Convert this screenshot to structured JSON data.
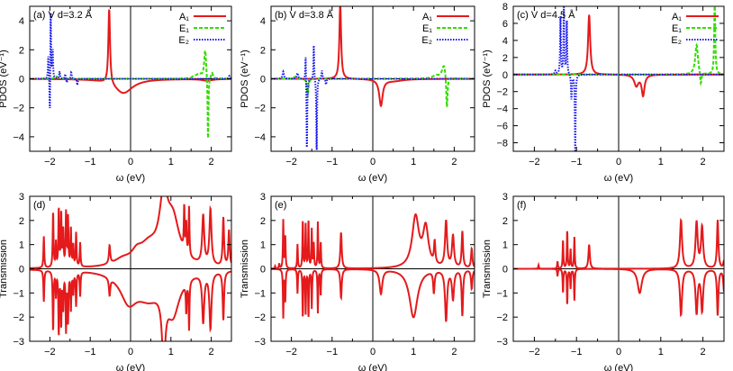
{
  "chart_data": [
    {
      "type": "line",
      "panel_label": "(a) V d=3.2 Å",
      "xlabel": "ω (eV)",
      "ylabel": "PDOS (eV⁻¹)",
      "xlim": [
        -2.5,
        2.5
      ],
      "ylim": [
        -5,
        5
      ],
      "xticks": [
        -2,
        -1,
        0,
        1,
        2
      ],
      "yticks": [
        -4,
        -2,
        0,
        2,
        4
      ],
      "legend": "top-right",
      "series": [
        {
          "name": "A₁",
          "color": "#e41a1c",
          "dash": "solid",
          "peaks": [
            [
              -0.53,
              5.2,
              0.025
            ],
            [
              -0.18,
              -1.0,
              0.28
            ],
            [
              1.9,
              -0.12,
              0.15
            ]
          ]
        },
        {
          "name": "E₁",
          "color": "#33dd00",
          "dash": "dashed",
          "peaks": [
            [
              1.58,
              0.15,
              0.06
            ],
            [
              1.7,
              0.3,
              0.07
            ],
            [
              1.85,
              2.0,
              0.03
            ],
            [
              1.92,
              -4.6,
              0.012
            ],
            [
              2.02,
              0.4,
              0.03
            ],
            [
              -1.85,
              0.18,
              0.04
            ]
          ]
        },
        {
          "name": "E₂",
          "color": "#1a1aee",
          "dash": "dotted",
          "peaks": [
            [
              -2.04,
              1.6,
              0.01
            ],
            [
              -2.0,
              -3.2,
              0.01
            ],
            [
              -1.98,
              5.2,
              0.01
            ],
            [
              -1.93,
              2.0,
              0.01
            ],
            [
              -1.76,
              0.5,
              0.012
            ],
            [
              -1.62,
              0.35,
              0.012
            ],
            [
              -1.58,
              -0.3,
              0.012
            ],
            [
              -1.47,
              0.45,
              0.012
            ],
            [
              -1.32,
              -0.45,
              0.012
            ],
            [
              2.45,
              0.2,
              0.02
            ]
          ]
        }
      ]
    },
    {
      "type": "line",
      "panel_label": "(b) V d=3.8 Å",
      "xlabel": "ω (eV)",
      "ylabel": "PDOS (eV⁻¹)",
      "xlim": [
        -2.5,
        2.5
      ],
      "ylim": [
        -5,
        5
      ],
      "xticks": [
        -2,
        -1,
        0,
        1,
        2
      ],
      "yticks": [
        -4,
        -2,
        0,
        2,
        4
      ],
      "legend": "top-right",
      "series": [
        {
          "name": "A₁",
          "color": "#e41a1c",
          "dash": "solid",
          "peaks": [
            [
              -0.8,
              5.2,
              0.025
            ],
            [
              0.2,
              -1.8,
              0.05
            ],
            [
              0.5,
              -0.15,
              0.3
            ]
          ]
        },
        {
          "name": "E₁",
          "color": "#33dd00",
          "dash": "dashed",
          "peaks": [
            [
              -1.6,
              -1.2,
              0.02
            ],
            [
              -1.9,
              0.15,
              0.05
            ],
            [
              1.55,
              0.2,
              0.1
            ],
            [
              1.75,
              1.0,
              0.06
            ],
            [
              1.82,
              -2.4,
              0.02
            ]
          ]
        },
        {
          "name": "E₂",
          "color": "#1a1aee",
          "dash": "dotted",
          "peaks": [
            [
              -2.2,
              0.5,
              0.02
            ],
            [
              -1.85,
              0.4,
              0.02
            ],
            [
              -1.65,
              2.0,
              0.01
            ],
            [
              -1.62,
              -5.2,
              0.01
            ],
            [
              -1.45,
              2.4,
              0.01
            ],
            [
              -1.38,
              -5.2,
              0.01
            ],
            [
              -1.25,
              0.6,
              0.015
            ],
            [
              -1.15,
              -0.4,
              0.015
            ]
          ]
        }
      ]
    },
    {
      "type": "line",
      "panel_label": "(c) V d=4.5 Å",
      "xlabel": "ω (eV)",
      "ylabel": "PDOS (eV⁻¹)",
      "xlim": [
        -2.5,
        2.5
      ],
      "ylim": [
        -9,
        8
      ],
      "xticks": [
        -2,
        -1,
        0,
        1,
        2
      ],
      "yticks": [
        -8,
        -6,
        -4,
        -2,
        0,
        2,
        4,
        6,
        8
      ],
      "legend": "top-right",
      "series": [
        {
          "name": "A₁",
          "color": "#e41a1c",
          "dash": "solid",
          "peaks": [
            [
              -0.7,
              7.0,
              0.03
            ],
            [
              0.42,
              -1.3,
              0.06
            ],
            [
              0.58,
              -2.4,
              0.04
            ]
          ]
        },
        {
          "name": "E₁",
          "color": "#33dd00",
          "dash": "dashed",
          "peaks": [
            [
              1.85,
              3.5,
              0.04
            ],
            [
              1.95,
              -1.5,
              0.02
            ],
            [
              2.28,
              8.5,
              0.015
            ]
          ]
        },
        {
          "name": "E₂",
          "color": "#1a1aee",
          "dash": "dotted",
          "peaks": [
            [
              -1.5,
              0.4,
              0.02
            ],
            [
              -1.38,
              7.0,
              0.01
            ],
            [
              -1.3,
              8.5,
              0.01
            ],
            [
              -1.23,
              6.5,
              0.01
            ],
            [
              -1.12,
              -3.0,
              0.012
            ],
            [
              -1.03,
              -9.5,
              0.01
            ]
          ]
        }
      ]
    },
    {
      "type": "line",
      "panel_label": "(d)",
      "xlabel": "ω (eV)",
      "ylabel": "Transmission",
      "xlim": [
        -2.5,
        2.5
      ],
      "ylim": [
        -3,
        3
      ],
      "xticks": [
        -2,
        -1,
        0,
        1,
        2
      ],
      "yticks": [
        -3,
        -2,
        -1,
        0,
        1,
        2,
        3
      ],
      "series": [
        {
          "name": "",
          "color": "#e41a1c",
          "dash": "solid",
          "peaks": [
            [
              -2.15,
              1.3,
              0.012
            ],
            [
              -1.92,
              2.3,
              0.012
            ],
            [
              -1.85,
              1.0,
              0.01
            ],
            [
              -1.78,
              2.4,
              0.012
            ],
            [
              -1.72,
              2.2,
              0.012
            ],
            [
              -1.67,
              1.5,
              0.012
            ],
            [
              -1.6,
              2.2,
              0.012
            ],
            [
              -1.55,
              2.0,
              0.012
            ],
            [
              -1.48,
              1.6,
              0.012
            ],
            [
              -1.42,
              0.9,
              0.012
            ],
            [
              -1.35,
              1.4,
              0.012
            ],
            [
              -1.25,
              1.0,
              0.012
            ],
            [
              -0.52,
              0.75,
              0.02
            ],
            [
              -0.2,
              0.25,
              0.25
            ],
            [
              0.15,
              0.35,
              0.15
            ],
            [
              0.45,
              0.8,
              0.3
            ],
            [
              0.82,
              2.4,
              0.12
            ],
            [
              1.05,
              1.8,
              0.2
            ],
            [
              1.33,
              1.8,
              0.012
            ],
            [
              1.38,
              1.2,
              0.012
            ],
            [
              1.45,
              2.0,
              0.012
            ],
            [
              1.8,
              2.0,
              0.03
            ],
            [
              1.98,
              2.3,
              0.03
            ],
            [
              2.3,
              2.0,
              0.02
            ],
            [
              2.44,
              1.5,
              0.02
            ]
          ]
        },
        {
          "name": "",
          "color": "#e41a1c",
          "dash": "solid",
          "peaks": [
            [
              -2.15,
              -1.3,
              0.012
            ],
            [
              -1.92,
              -2.5,
              0.012
            ],
            [
              -1.85,
              -1.0,
              0.01
            ],
            [
              -1.78,
              -2.6,
              0.012
            ],
            [
              -1.72,
              -2.2,
              0.012
            ],
            [
              -1.67,
              -1.5,
              0.012
            ],
            [
              -1.6,
              -2.4,
              0.012
            ],
            [
              -1.55,
              -2.0,
              0.012
            ],
            [
              -1.48,
              -1.6,
              0.012
            ],
            [
              -1.42,
              -0.9,
              0.012
            ],
            [
              -1.35,
              -1.4,
              0.012
            ],
            [
              -1.25,
              -1.0,
              0.012
            ],
            [
              -0.52,
              -0.7,
              0.02
            ],
            [
              -0.05,
              -1.1,
              0.25
            ],
            [
              0.45,
              -1.0,
              0.4
            ],
            [
              0.82,
              -2.7,
              0.05
            ],
            [
              1.05,
              -1.6,
              0.2
            ],
            [
              1.38,
              -1.2,
              0.012
            ],
            [
              1.45,
              -2.0,
              0.012
            ],
            [
              1.8,
              -2.0,
              0.03
            ],
            [
              1.98,
              -2.3,
              0.03
            ],
            [
              2.3,
              -2.0,
              0.02
            ]
          ]
        }
      ]
    },
    {
      "type": "line",
      "panel_label": "(e)",
      "xlabel": "ω (eV)",
      "ylabel": "Transmission",
      "xlim": [
        -2.5,
        2.5
      ],
      "ylim": [
        -3,
        3
      ],
      "xticks": [
        -2,
        -1,
        0,
        1,
        2
      ],
      "yticks": [
        -3,
        -2,
        -1,
        0,
        1,
        2,
        3
      ],
      "series": [
        {
          "name": "",
          "color": "#e41a1c",
          "dash": "solid",
          "peaks": [
            [
              -2.4,
              0.1,
              0.01
            ],
            [
              -2.3,
              0.2,
              0.01
            ],
            [
              -2.2,
              2.0,
              0.01
            ],
            [
              -2.15,
              1.3,
              0.01
            ],
            [
              -1.85,
              1.0,
              0.01
            ],
            [
              -1.72,
              2.0,
              0.01
            ],
            [
              -1.65,
              1.8,
              0.01
            ],
            [
              -1.58,
              2.0,
              0.01
            ],
            [
              -1.5,
              1.6,
              0.01
            ],
            [
              -1.45,
              1.0,
              0.01
            ],
            [
              -1.35,
              1.9,
              0.01
            ],
            [
              -1.28,
              1.1,
              0.01
            ],
            [
              -0.78,
              1.5,
              0.02
            ],
            [
              1.05,
              2.1,
              0.1
            ],
            [
              1.3,
              1.6,
              0.08
            ],
            [
              1.52,
              0.9,
              0.02
            ],
            [
              1.8,
              1.9,
              0.03
            ],
            [
              1.97,
              1.3,
              0.03
            ],
            [
              2.2,
              1.5,
              0.02
            ],
            [
              2.43,
              0.8,
              0.02
            ]
          ]
        },
        {
          "name": "",
          "color": "#e41a1c",
          "dash": "solid",
          "peaks": [
            [
              -2.2,
              -2.0,
              0.01
            ],
            [
              -2.15,
              -1.3,
              0.01
            ],
            [
              -1.85,
              -1.0,
              0.01
            ],
            [
              -1.72,
              -2.0,
              0.01
            ],
            [
              -1.65,
              -1.8,
              0.01
            ],
            [
              -1.58,
              -2.0,
              0.01
            ],
            [
              -1.5,
              -1.6,
              0.01
            ],
            [
              -1.35,
              -1.8,
              0.01
            ],
            [
              -1.28,
              -1.1,
              0.01
            ],
            [
              -0.78,
              -1.2,
              0.02
            ],
            [
              0.2,
              -1.0,
              0.04
            ],
            [
              1.0,
              -2.0,
              0.12
            ],
            [
              1.5,
              -0.9,
              0.02
            ],
            [
              1.8,
              -2.1,
              0.03
            ],
            [
              1.97,
              -1.2,
              0.03
            ],
            [
              2.2,
              -1.9,
              0.02
            ],
            [
              2.43,
              -0.8,
              0.02
            ]
          ]
        }
      ]
    },
    {
      "type": "line",
      "panel_label": "(f)",
      "xlabel": "ω (eV)",
      "ylabel": "Transmission",
      "xlim": [
        -2.5,
        2.5
      ],
      "ylim": [
        -3,
        3
      ],
      "xticks": [
        -2,
        -1,
        0,
        1,
        2
      ],
      "yticks": [
        -3,
        -2,
        -1,
        0,
        1,
        2,
        3
      ],
      "series": [
        {
          "name": "",
          "color": "#e41a1c",
          "dash": "solid",
          "peaks": [
            [
              -1.9,
              0.15,
              0.01
            ],
            [
              -1.45,
              0.3,
              0.01
            ],
            [
              -1.32,
              1.2,
              0.01
            ],
            [
              -1.22,
              1.6,
              0.01
            ],
            [
              -1.14,
              0.8,
              0.01
            ],
            [
              -1.05,
              1.3,
              0.01
            ],
            [
              -0.7,
              1.0,
              0.02
            ],
            [
              1.48,
              2.0,
              0.03
            ],
            [
              1.85,
              1.9,
              0.03
            ],
            [
              1.98,
              1.7,
              0.03
            ],
            [
              2.35,
              2.0,
              0.02
            ],
            [
              2.5,
              0.3,
              0.02
            ]
          ]
        },
        {
          "name": "",
          "color": "#e41a1c",
          "dash": "solid",
          "peaks": [
            [
              -1.45,
              -0.3,
              0.01
            ],
            [
              -1.32,
              -1.0,
              0.01
            ],
            [
              -1.22,
              -1.5,
              0.01
            ],
            [
              -1.14,
              -0.8,
              0.01
            ],
            [
              -1.05,
              -1.3,
              0.01
            ],
            [
              0.5,
              -1.0,
              0.06
            ],
            [
              1.48,
              -1.9,
              0.03
            ],
            [
              1.85,
              -1.8,
              0.03
            ],
            [
              1.98,
              -1.7,
              0.03
            ],
            [
              2.35,
              -1.9,
              0.02
            ],
            [
              2.5,
              -0.9,
              0.02
            ]
          ]
        }
      ]
    }
  ]
}
